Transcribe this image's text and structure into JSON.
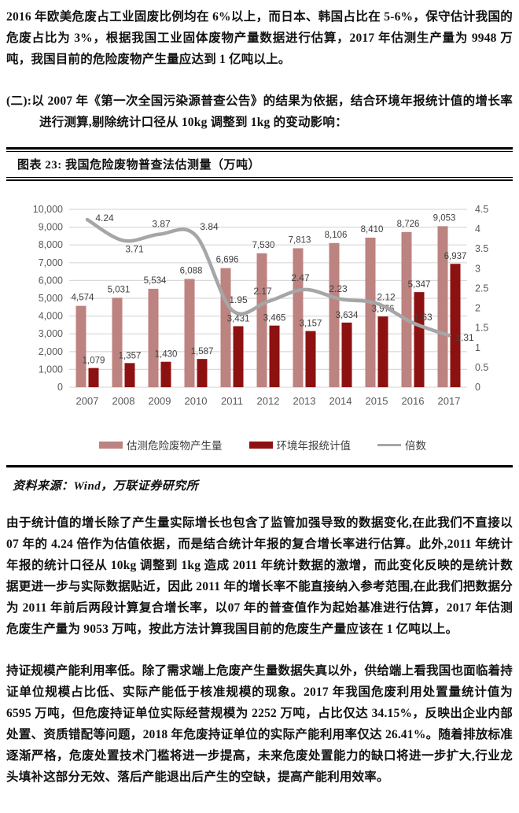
{
  "page": {
    "paragraph1": "2016 年欧美危废占工业固废比例均在 6%以上，而日本、韩国占比在 5-6%，保守估计我国的危废占比为 3%，根据我国工业固体废物产量数据进行估算，2017 年估测生产量为 9948 万吨，我国目前的危险废物产生量应达到 1 亿吨以上。",
    "paragraph2": "(二):以 2007 年《第一次全国污染源普查公告》的结果为依据，结合环境年报统计值的增长率进行测算,剔除统计口径从 10kg 调整到 1kg 的变动影响：",
    "paragraph3": "由于统计值的增长除了产生量实际增长也包含了监管加强导致的数据变化,在此我们不直接以 07 年的 4.24 倍作为估值依据，而是结合统计年报的复合增长率进行估算。此外,2011 年统计年报的统计口径从 10kg 调整到 1kg 造成 2011 年统计数据的激增，而此变化反映的是统计数据更进一步与实际数据贴近，因此 2011 年的增长率不能直接纳入参考范围,在此我们把数据分为 2011 年前后两段计算复合增长率，以07 年的普查值作为起始基准进行估算，2017 年估测危废生产量为 9053 万吨，按此方法计算我国目前的危废生产量应该在 1 亿吨以上。",
    "paragraph4_lead": "持证规模产能利用率低。",
    "paragraph4": "除了需求端上危废产生量数据失真以外，供给端上看我国也面临着持证单位规模占比低、实际产能低于核准规模的现象。2017 年我国危废利用处置量统计值为 6595 万吨，但危废持证单位实际经营规模为 2252 万吨，占比仅达 34.15%，反映出企业内部处置、资质错配等问题，2018 年危废持证单位的实际产能利用率仅达 26.41%。随着排放标准逐渐严格，危废处置技术门槛将进一步提高，未来危废处置能力的缺口将进一步扩大,行业龙头填补这部分无效、落后产能退出后产生的空缺，提高产能利用效率。"
  },
  "figure": {
    "title": "图表 23: 我国危险废物普查法估测量（万吨）",
    "source": "资料来源：Wind，万联证券研究所"
  },
  "chart_data": {
    "type": "bar",
    "subtype": "grouped-bars-with-line",
    "title": "我国危险废物普查法估测量（万吨）",
    "categories": [
      "2007",
      "2008",
      "2009",
      "2010",
      "2011",
      "2012",
      "2013",
      "2014",
      "2015",
      "2016",
      "2017"
    ],
    "series": [
      {
        "name": "估测危险废物产生量",
        "type": "bar",
        "axis": "left",
        "color": "#bc8381",
        "values": [
          4574,
          5031,
          5534,
          6088,
          6696,
          7530,
          7813,
          8106,
          8410,
          8726,
          9053
        ]
      },
      {
        "name": "环境年报统计值",
        "type": "bar",
        "axis": "left",
        "color": "#8e1111",
        "values": [
          1079,
          1357,
          1430,
          1587,
          3431,
          3465,
          3157,
          3634,
          3976,
          5347,
          6937
        ]
      },
      {
        "name": "倍数",
        "type": "line",
        "axis": "right",
        "color": "#a6a6a6",
        "values": [
          4.24,
          3.71,
          3.87,
          3.84,
          1.95,
          2.17,
          2.47,
          2.23,
          2.12,
          1.63,
          1.31
        ]
      }
    ],
    "left_axis": {
      "min": 0,
      "max": 10000,
      "step": 1000
    },
    "right_axis": {
      "min": 0,
      "max": 4.5,
      "step": 0.5
    },
    "grid": true,
    "gridline_color": "#d9d9d9",
    "axis_label_color": "#595959",
    "data_label_color": "#404040",
    "legend_position": "bottom",
    "legend": [
      "估测危险废物产生量",
      "环境年报统计值",
      "倍数"
    ]
  }
}
